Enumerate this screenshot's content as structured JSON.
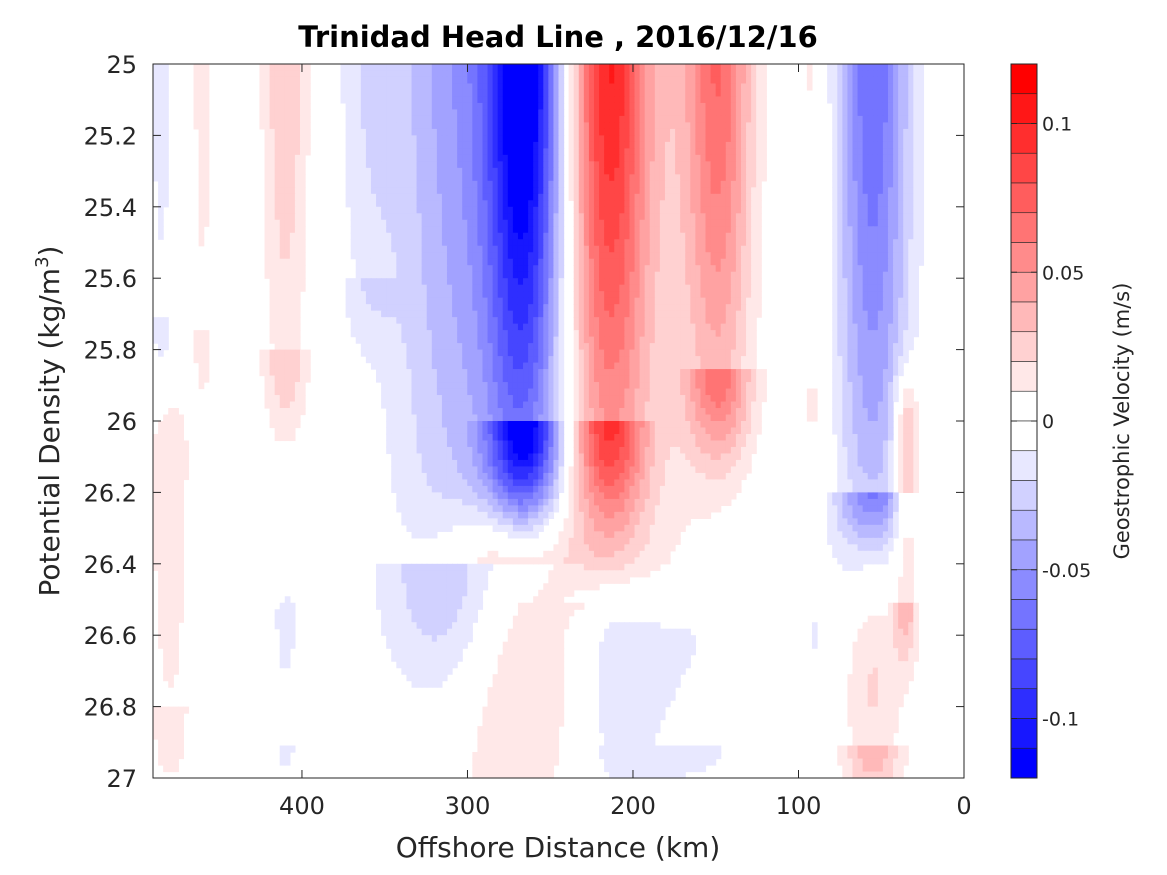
{
  "chart_data": {
    "type": "heatmap",
    "title": "Trinidad Head Line , 2016/12/16",
    "xlabel": "Offshore Distance (km)",
    "ylabel_main": "Potential Density (kg/m",
    "ylabel_sup": "3",
    "ylabel_end": ")",
    "xlim": [
      490,
      0
    ],
    "ylim": [
      25,
      27
    ],
    "x_reversed": true,
    "y_reversed": true,
    "x_ticks": [
      400,
      300,
      200,
      100,
      0
    ],
    "x_tick_labels": [
      "400",
      "300",
      "200",
      "100",
      "0"
    ],
    "y_ticks": [
      25,
      25.2,
      25.4,
      25.6,
      25.8,
      26,
      26.2,
      26.4,
      26.6,
      26.8,
      27
    ],
    "y_tick_labels": [
      "25",
      "25.2",
      "25.4",
      "25.6",
      "25.8",
      "26",
      "26.2",
      "26.4",
      "26.6",
      "26.8",
      "27"
    ],
    "colorbar": {
      "label": "Geostrophic Velocity (m/s)",
      "range": [
        -0.12,
        0.12
      ],
      "ticks": [
        0.1,
        0.05,
        0,
        -0.05,
        -0.1
      ],
      "tick_labels": [
        "0.1",
        "0.05",
        "0",
        "-0.05",
        "-0.1"
      ],
      "levels": 24,
      "negative_color": "#0000ff",
      "positive_color": "#ff0000",
      "zero_color": "#ffffff"
    },
    "features": [
      {
        "x_center": 265,
        "x_halfwidth": 22,
        "y_top": 25,
        "y_bottom": 26.0,
        "peak": -0.11
      },
      {
        "x_center": 300,
        "x_halfwidth": 45,
        "y_top": 25,
        "y_bottom": 26.4,
        "peak": -0.05
      },
      {
        "x_center": 360,
        "x_halfwidth": 18,
        "y_top": 25,
        "y_bottom": 25.6,
        "peak": -0.015
      },
      {
        "x_center": 485,
        "x_halfwidth": 8,
        "y_top": 25,
        "y_bottom": 25.7,
        "peak": -0.015
      },
      {
        "x_center": 55,
        "x_halfwidth": 22,
        "y_top": 25,
        "y_bottom": 26.2,
        "peak": -0.07
      },
      {
        "x_center": 215,
        "x_halfwidth": 22,
        "y_top": 25,
        "y_bottom": 26.0,
        "peak": 0.08
      },
      {
        "x_center": 200,
        "x_halfwidth": 45,
        "y_top": 25,
        "y_bottom": 26.5,
        "peak": 0.025
      },
      {
        "x_center": 148,
        "x_halfwidth": 20,
        "y_top": 25,
        "y_bottom": 25.85,
        "peak": 0.065
      },
      {
        "x_center": 410,
        "x_halfwidth": 14,
        "y_top": 25,
        "y_bottom": 25.8,
        "peak": 0.03
      },
      {
        "x_center": 460,
        "x_halfwidth": 7,
        "y_top": 25,
        "y_bottom": 25.75,
        "peak": 0.015
      },
      {
        "x_center": 90,
        "x_halfwidth": 10,
        "y_top": 25,
        "y_bottom": 25.9,
        "peak": 0.015
      },
      {
        "x_center": 480,
        "x_halfwidth": 12,
        "y_top": 26.1,
        "y_bottom": 26.8,
        "peak": 0.02
      },
      {
        "x_center": 370,
        "x_halfwidth": 5,
        "y_top": 26.0,
        "y_bottom": 26.3,
        "peak": 0.01
      },
      {
        "x_center": 275,
        "x_halfwidth": 40,
        "y_top": 26.4,
        "y_bottom": 27.0,
        "peak": 0.045
      },
      {
        "x_center": 210,
        "x_halfwidth": 30,
        "y_top": 26.6,
        "y_bottom": 27.0,
        "peak": -0.035
      },
      {
        "x_center": 170,
        "x_halfwidth": 35,
        "y_top": 26.6,
        "y_bottom": 26.9,
        "peak": -0.02
      },
      {
        "x_center": 410,
        "x_halfwidth": 12,
        "y_top": 26.55,
        "y_bottom": 26.9,
        "peak": -0.012
      },
      {
        "x_center": 90,
        "x_halfwidth": 5,
        "y_top": 26.6,
        "y_bottom": 26.9,
        "peak": -0.01
      },
      {
        "x_center": 55,
        "x_halfwidth": 18,
        "y_top": 26.4,
        "y_bottom": 26.9,
        "peak": 0.04
      },
      {
        "x_center": 35,
        "x_halfwidth": 8,
        "y_top": 26.0,
        "y_bottom": 26.5,
        "peak": 0.04
      }
    ]
  }
}
